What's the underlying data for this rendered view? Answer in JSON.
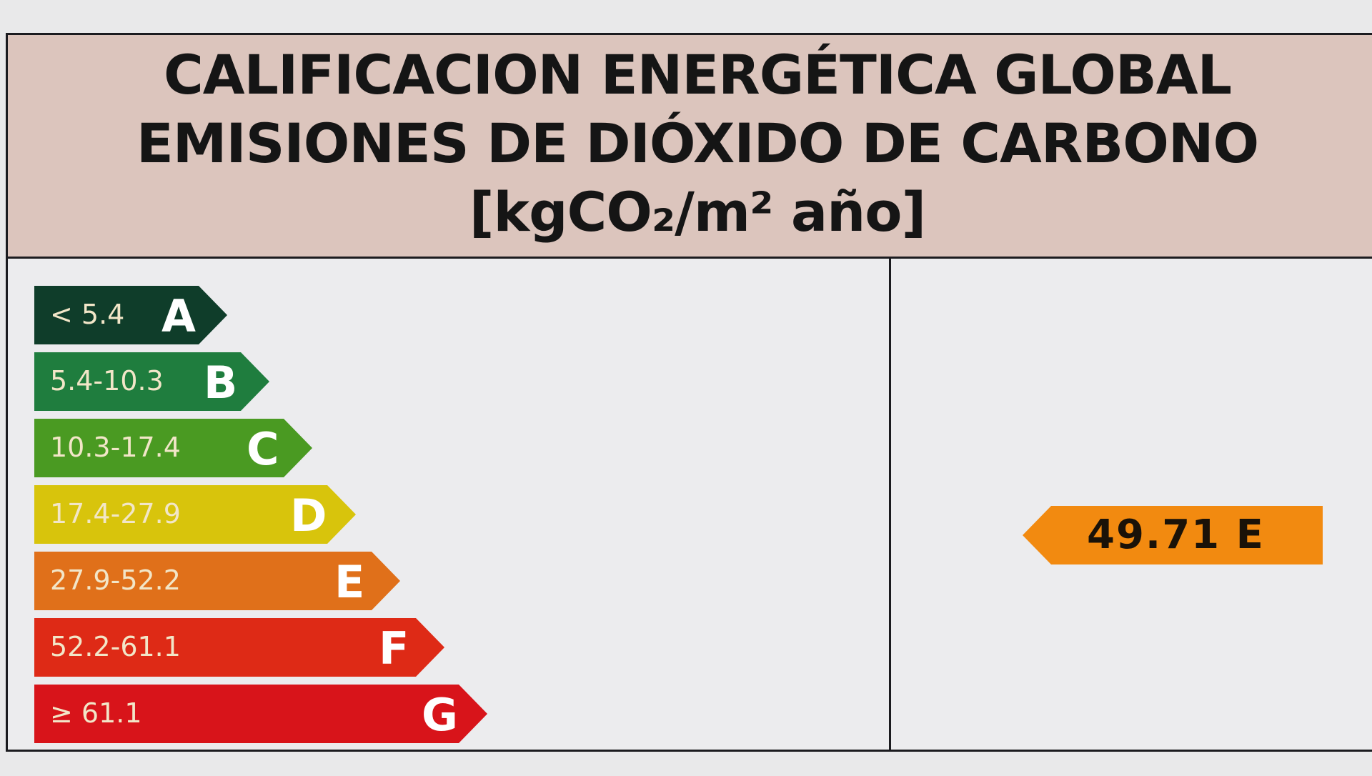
{
  "title": {
    "line1": "CALIFICACION ENERGÉTICA GLOBAL",
    "line2": "EMISIONES DE DIÓXIDO DE CARBONO",
    "unit": "[kgCO₂/m² año]"
  },
  "scale": [
    {
      "letter": "A",
      "range": "< 5.4",
      "color": "#0f3d2a"
    },
    {
      "letter": "B",
      "range": "5.4-10.3",
      "color": "#1f7d3e"
    },
    {
      "letter": "C",
      "range": "10.3-17.4",
      "color": "#4a9a22"
    },
    {
      "letter": "D",
      "range": "17.4-27.9",
      "color": "#d8c40c"
    },
    {
      "letter": "E",
      "range": "27.9-52.2",
      "color": "#e0701a"
    },
    {
      "letter": "F",
      "range": "52.2-61.1",
      "color": "#de2a16"
    },
    {
      "letter": "G",
      "range": "≥ 61.1",
      "color": "#d8141a"
    }
  ],
  "rating": {
    "value": "49.71 E",
    "color": "#f28a10"
  }
}
